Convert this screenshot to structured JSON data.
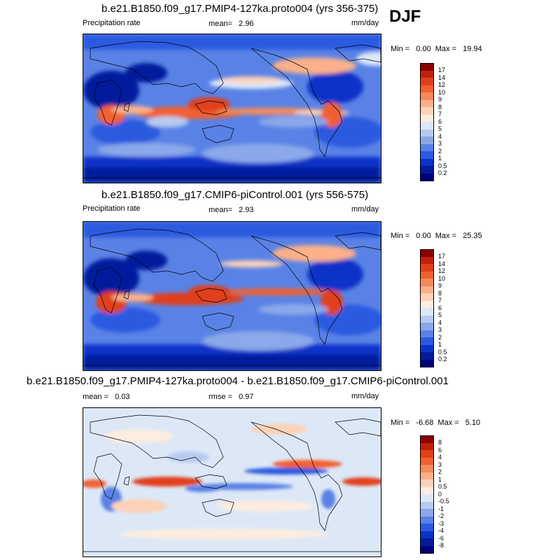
{
  "season": "DJF",
  "units": "mm/day",
  "panels": [
    {
      "title": "b.e21.B1850.f09_g17.PMIP4-127ka.proto004 (yrs 356-375)",
      "left_label": "Precipitation rate",
      "mean_label": "mean=",
      "mean_value": "2.96",
      "min_label": "Min =",
      "min_value": "0.00",
      "max_label": "Max =",
      "max_value": "19.94"
    },
    {
      "title": "b.e21.B1850.f09_g17.CMIP6-piControl.001 (yrs 556-575)",
      "left_label": "Precipitation rate",
      "mean_label": "mean=",
      "mean_value": "2.93",
      "min_label": "Min =",
      "min_value": "0.00",
      "max_label": "Max =",
      "max_value": "25.35"
    },
    {
      "title": "b.e21.B1850.f09_g17.PMIP4-127ka.proto004 - b.e21.B1850.f09_g17.CMIP6-piControl.001",
      "mean_label": "mean =",
      "mean_value": "0.03",
      "rmse_label": "rmse =",
      "rmse_value": "0.97",
      "min_label": "Min =",
      "min_value": "-6.68",
      "max_label": "Max =",
      "max_value": "5.10"
    }
  ],
  "colorbars": {
    "precip": {
      "labels": [
        "17",
        "14",
        "12",
        "10",
        "9",
        "8",
        "7",
        "6",
        "5",
        "4",
        "3",
        "2",
        "1",
        "0.5",
        "0.2"
      ],
      "colors": [
        "#8b0000",
        "#c0200a",
        "#e0401a",
        "#f06030",
        "#f58a5a",
        "#fbb08a",
        "#fdd2b8",
        "#fdece0",
        "#dde8f7",
        "#b6cbf0",
        "#8aa8ea",
        "#5a82e6",
        "#2a5ae0",
        "#0a33c8",
        "#021c9c",
        "#000078"
      ]
    },
    "diff": {
      "labels": [
        "8",
        "6",
        "4",
        "3",
        "2",
        "1",
        "0.5",
        "0",
        "-0.5",
        "-1",
        "-2",
        "-3",
        "-4",
        "-6",
        "-8"
      ],
      "colors": [
        "#8b0000",
        "#c0200a",
        "#e0401a",
        "#f06030",
        "#f58a5a",
        "#fbb08a",
        "#fdd2b8",
        "#fdece0",
        "#dde8f7",
        "#b6cbf0",
        "#8aa8ea",
        "#5a82e6",
        "#2a5ae0",
        "#0a33c8",
        "#021c9c",
        "#000078"
      ]
    }
  }
}
